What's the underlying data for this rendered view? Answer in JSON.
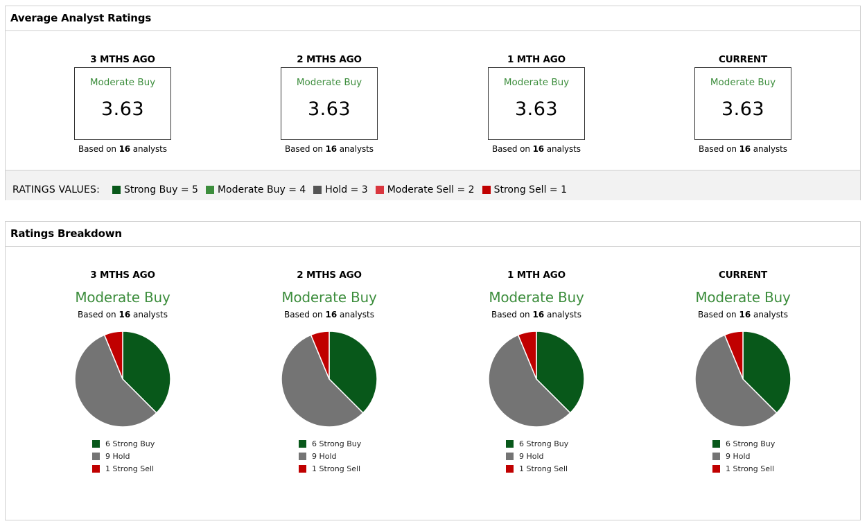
{
  "avg_panel": {
    "title": "Average Analyst Ratings",
    "columns": [
      {
        "label": "3 MTHS AGO",
        "rating": "Moderate Buy",
        "score": "3.63",
        "based_prefix": "Based on ",
        "analysts": "16",
        "based_suffix": " analysts"
      },
      {
        "label": "2 MTHS AGO",
        "rating": "Moderate Buy",
        "score": "3.63",
        "based_prefix": "Based on ",
        "analysts": "16",
        "based_suffix": " analysts"
      },
      {
        "label": "1 MTH AGO",
        "rating": "Moderate Buy",
        "score": "3.63",
        "based_prefix": "Based on ",
        "analysts": "16",
        "based_suffix": " analysts"
      },
      {
        "label": "CURRENT",
        "rating": "Moderate Buy",
        "score": "3.63",
        "based_prefix": "Based on ",
        "analysts": "16",
        "based_suffix": " analysts"
      }
    ],
    "values_bar": {
      "title": "RATINGS VALUES:",
      "items": [
        {
          "label": "Strong Buy = 5",
          "color": "#08581a"
        },
        {
          "label": "Moderate Buy = 4",
          "color": "#3c8d3c"
        },
        {
          "label": "Hold = 3",
          "color": "#555555"
        },
        {
          "label": "Moderate Sell = 2",
          "color": "#d9363e"
        },
        {
          "label": "Strong Sell = 1",
          "color": "#c00000"
        }
      ]
    }
  },
  "breakdown_panel": {
    "title": "Ratings Breakdown"
  },
  "chart_data": [
    {
      "type": "pie",
      "label": "3 MTHS AGO",
      "rating": "Moderate Buy",
      "based_prefix": "Based on ",
      "analysts": "16",
      "based_suffix": " analysts",
      "slices": [
        {
          "name": "Strong Buy",
          "value": 6,
          "legend": "6 Strong Buy",
          "color": "#08581a"
        },
        {
          "name": "Hold",
          "value": 9,
          "legend": "9 Hold",
          "color": "#747474"
        },
        {
          "name": "Strong Sell",
          "value": 1,
          "legend": "1 Strong Sell",
          "color": "#c00000"
        }
      ]
    },
    {
      "type": "pie",
      "label": "2 MTHS AGO",
      "rating": "Moderate Buy",
      "based_prefix": "Based on ",
      "analysts": "16",
      "based_suffix": " analysts",
      "slices": [
        {
          "name": "Strong Buy",
          "value": 6,
          "legend": "6 Strong Buy",
          "color": "#08581a"
        },
        {
          "name": "Hold",
          "value": 9,
          "legend": "9 Hold",
          "color": "#747474"
        },
        {
          "name": "Strong Sell",
          "value": 1,
          "legend": "1 Strong Sell",
          "color": "#c00000"
        }
      ]
    },
    {
      "type": "pie",
      "label": "1 MTH AGO",
      "rating": "Moderate Buy",
      "based_prefix": "Based on ",
      "analysts": "16",
      "based_suffix": " analysts",
      "slices": [
        {
          "name": "Strong Buy",
          "value": 6,
          "legend": "6 Strong Buy",
          "color": "#08581a"
        },
        {
          "name": "Hold",
          "value": 9,
          "legend": "9 Hold",
          "color": "#747474"
        },
        {
          "name": "Strong Sell",
          "value": 1,
          "legend": "1 Strong Sell",
          "color": "#c00000"
        }
      ]
    },
    {
      "type": "pie",
      "label": "CURRENT",
      "rating": "Moderate Buy",
      "based_prefix": "Based on ",
      "analysts": "16",
      "based_suffix": " analysts",
      "slices": [
        {
          "name": "Strong Buy",
          "value": 6,
          "legend": "6 Strong Buy",
          "color": "#08581a"
        },
        {
          "name": "Hold",
          "value": 9,
          "legend": "9 Hold",
          "color": "#747474"
        },
        {
          "name": "Strong Sell",
          "value": 1,
          "legend": "1 Strong Sell",
          "color": "#c00000"
        }
      ]
    }
  ]
}
